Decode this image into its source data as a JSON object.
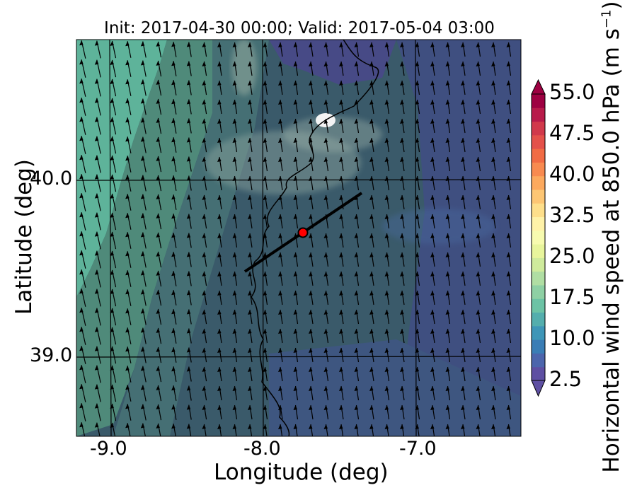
{
  "title": "Init: 2017-04-30 00:00; Valid: 2017-05-04 03:00",
  "axes": {
    "xlabel": "Longitude (deg)",
    "ylabel": "Latitude (deg)",
    "xticks": [
      "-9.0",
      "-8.0",
      "-7.0"
    ],
    "yticks": [
      "40.0",
      "39.0"
    ],
    "xlim": [
      -9.25,
      -6.35
    ],
    "ylim": [
      38.55,
      40.8
    ]
  },
  "colorbar": {
    "label_prefix": "Horizontal wind speed at 850.0 hPa (m s",
    "label_exp": "−1",
    "label_suffix": ")",
    "tick_labels": [
      "55.0",
      "47.5",
      "40.0",
      "32.5",
      "25.0",
      "17.5",
      "10.0",
      "2.5"
    ],
    "levels": [
      2.5,
      5.0,
      7.5,
      10.0,
      12.5,
      15.0,
      17.5,
      20.0,
      22.5,
      25.0,
      27.5,
      30.0,
      32.5,
      35.0,
      37.5,
      40.0,
      42.5,
      45.0,
      47.5,
      50.0,
      52.5,
      55.0
    ],
    "colors": [
      "#5e4fa2",
      "#4c65ac",
      "#3a7db5",
      "#3e96b7",
      "#54aead",
      "#6cc3a5",
      "#8ed0a4",
      "#b0dea3",
      "#cfeb9c",
      "#e8f59c",
      "#f7fbaf",
      "#fff2a8",
      "#fedf8b",
      "#fdc674",
      "#fca95e",
      "#f88a50",
      "#f16b44",
      "#e4514a",
      "#d1394b",
      "#b81b4a",
      "#9e0142"
    ]
  },
  "chart_data": {
    "type": "map",
    "field": "horizontal wind speed at 850 hPa (filled contours) with wind arrows",
    "cross_section_line": {
      "start": [
        -8.12,
        39.48
      ],
      "end": [
        -7.37,
        39.93
      ]
    },
    "marker": {
      "lon": -7.75,
      "lat": 39.69,
      "color": "#ff0000"
    },
    "dominant_wind_direction": "from south-southeast (arrows pointing north-northwest)"
  }
}
